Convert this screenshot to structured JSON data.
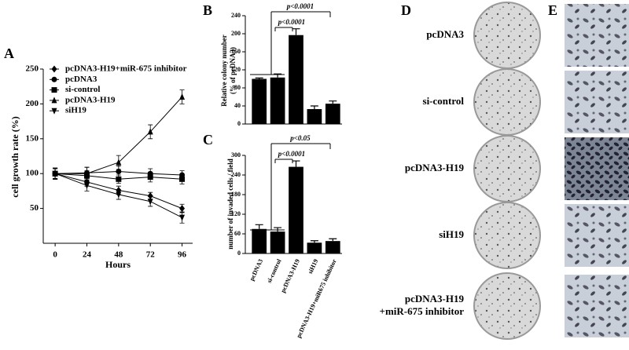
{
  "chart_data": [
    {
      "type": "line",
      "panel": "A",
      "y_label": [
        "cell growth rate (%)"
      ],
      "x_label": "Hours",
      "x": [
        0,
        24,
        48,
        72,
        96
      ],
      "xlim": [
        -9,
        104
      ],
      "xticks": [
        0,
        24,
        48,
        72,
        96
      ],
      "ylim": [
        0,
        250
      ],
      "yticks": [
        50,
        100,
        150,
        200,
        250
      ],
      "series": [
        {
          "name": "pcDNA3-H19+miR-675 inhibitor",
          "marker": "diamond",
          "color": "#000000",
          "values": [
            100,
            88,
            76,
            68,
            50
          ],
          "errors": [
            7,
            6,
            6,
            5,
            6
          ]
        },
        {
          "name": "pcDNA3",
          "marker": "circle",
          "color": "#000000",
          "values": [
            100,
            101,
            103,
            100,
            98
          ],
          "errors": [
            7,
            8,
            8,
            7,
            6
          ]
        },
        {
          "name": "si-control",
          "marker": "square",
          "color": "#000000",
          "values": [
            100,
            97,
            92,
            95,
            92
          ],
          "errors": [
            8,
            7,
            6,
            7,
            7
          ]
        },
        {
          "name": "pcDNA3-H19",
          "marker": "triangle",
          "color": "#000000",
          "values": [
            100,
            100,
            116,
            160,
            210
          ],
          "errors": [
            8,
            9,
            10,
            10,
            10
          ]
        },
        {
          "name": "siH19",
          "marker": "triangle-down",
          "color": "#000000",
          "values": [
            100,
            83,
            70,
            60,
            37
          ],
          "errors": [
            8,
            8,
            7,
            7,
            8
          ]
        }
      ]
    },
    {
      "type": "bar",
      "panel": "B",
      "y_label": [
        "Relative colony number",
        "(% of pcDNA3)"
      ],
      "categories": [
        null,
        null,
        null,
        null,
        null
      ],
      "values": [
        100,
        103,
        197,
        33,
        45
      ],
      "errors": [
        2,
        8,
        14,
        7,
        6
      ],
      "color": "#000000",
      "ylim": [
        0,
        240
      ],
      "yticks": [
        0,
        40,
        80,
        120,
        160,
        200,
        240
      ],
      "annotations": [
        "p<0.0001",
        "p<0.0001"
      ]
    },
    {
      "type": "bar",
      "panel": "C",
      "y_label": [
        "number of invaded cells / field"
      ],
      "categories": [
        "pcDNA3",
        "si-control",
        "pcDNA3-H19",
        "siH19",
        "pcDNA3-H19+miR675 inhibitor"
      ],
      "values": [
        75,
        67,
        265,
        33,
        38
      ],
      "errors": [
        13,
        12,
        18,
        6,
        7
      ],
      "color": "#000000",
      "ylim": [
        0,
        300
      ],
      "yticks": [
        0,
        60,
        120,
        180,
        240,
        300
      ],
      "annotations": [
        "p<0.05",
        "p<0.0001"
      ]
    }
  ],
  "photo_panels": {
    "D": {
      "label": "D",
      "rows": [
        [
          "pcDNA3"
        ],
        [
          "si-control"
        ],
        [
          "pcDNA3-H19"
        ],
        [
          "siH19"
        ],
        [
          "pcDNA3-H19",
          "+miR-675 inhibitor"
        ]
      ]
    },
    "E": {
      "label": "E"
    }
  }
}
